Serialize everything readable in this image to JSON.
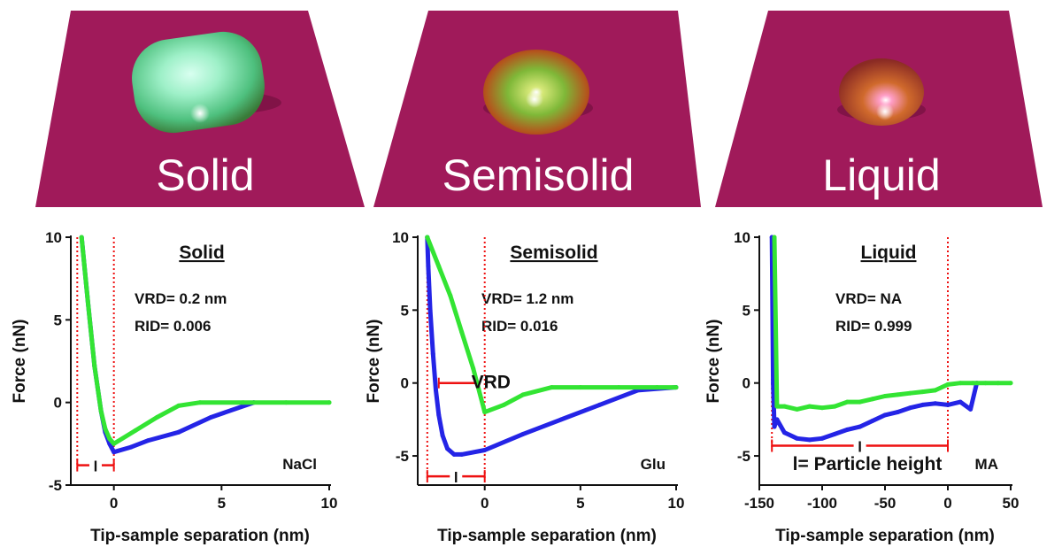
{
  "colors": {
    "background": "#ffffff",
    "substrate": "#a01a5a",
    "series_blue": "#2424e6",
    "series_green": "#33e433",
    "annotation_red": "#ee1111",
    "axis": "#111111"
  },
  "panels": [
    {
      "label": "Solid"
    },
    {
      "label": "Semisolid"
    },
    {
      "label": "Liquid"
    }
  ],
  "chart_data": [
    {
      "type": "line",
      "title": "Solid",
      "sample": "NaCl",
      "vrd_text": "VRD= 0.2 nm",
      "rid_text": "RID= 0.006",
      "xlabel": "Tip-sample separation (nm)",
      "ylabel": "Force (nN)",
      "xlim": [
        -2,
        10
      ],
      "ylim": [
        -5,
        10
      ],
      "xticks": [
        {
          "v": 0,
          "t": "0"
        },
        {
          "v": 5,
          "t": "5"
        },
        {
          "v": 10,
          "t": "10"
        }
      ],
      "yticks": [
        {
          "v": -5,
          "t": "-5"
        },
        {
          "v": 0,
          "t": "0"
        },
        {
          "v": 5,
          "t": "5"
        },
        {
          "v": 10,
          "t": "10"
        }
      ],
      "series": [
        {
          "name": "approach",
          "color": "blue",
          "x": [
            -1.5,
            -1.2,
            -0.9,
            -0.6,
            -0.4,
            -0.2,
            0.0,
            0.8,
            1.6,
            3.0,
            4.5,
            6.5
          ],
          "y": [
            10.0,
            6.0,
            2.2,
            -0.5,
            -1.8,
            -2.5,
            -3.0,
            -2.7,
            -2.3,
            -1.8,
            -0.9,
            0.0
          ]
        },
        {
          "name": "retract",
          "color": "green",
          "x": [
            -1.5,
            -1.2,
            -0.9,
            -0.6,
            -0.4,
            -0.2,
            0.0,
            1.0,
            2.0,
            3.0,
            4.0,
            6.0,
            8.0,
            10.0
          ],
          "y": [
            10.0,
            6.0,
            2.2,
            -0.5,
            -1.6,
            -2.2,
            -2.5,
            -1.7,
            -0.9,
            -0.2,
            0.0,
            0.0,
            0.0,
            0.0
          ]
        }
      ],
      "vrd_label": "",
      "l_label": "l",
      "bracket_x": [
        -1.7,
        0.0
      ],
      "bracket_y": -3.8,
      "height_text": "",
      "dotted_x": [
        -1.7,
        0.0
      ],
      "dotted_y_bottom": -4.0
    },
    {
      "type": "line",
      "title": "Semisolid",
      "sample": "Glu",
      "vrd_text": "VRD= 1.2 nm",
      "rid_text": "RID= 0.016",
      "xlabel": "Tip-sample separation (nm)",
      "ylabel": "Force (nN)",
      "xlim": [
        -3.5,
        10
      ],
      "ylim": [
        -7,
        10
      ],
      "xticks": [
        {
          "v": 0,
          "t": "0"
        },
        {
          "v": 5,
          "t": "5"
        },
        {
          "v": 10,
          "t": "10"
        }
      ],
      "yticks": [
        {
          "v": -5,
          "t": "-5"
        },
        {
          "v": 0,
          "t": "0"
        },
        {
          "v": 5,
          "t": "5"
        },
        {
          "v": 10,
          "t": "10"
        }
      ],
      "series": [
        {
          "name": "approach",
          "color": "blue",
          "x": [
            -3.0,
            -2.95,
            -2.85,
            -2.7,
            -2.55,
            -2.4,
            -2.2,
            -1.95,
            -1.6,
            -1.2,
            0.0,
            2.0,
            4.0,
            6.0,
            8.0,
            10.0
          ],
          "y": [
            10.0,
            8.0,
            5.0,
            2.0,
            -0.5,
            -2.2,
            -3.6,
            -4.5,
            -4.9,
            -4.9,
            -4.6,
            -3.5,
            -2.5,
            -1.5,
            -0.5,
            -0.3
          ]
        },
        {
          "name": "retract",
          "color": "green",
          "x": [
            -3.0,
            -2.4,
            -1.8,
            -1.2,
            -0.6,
            0.0,
            1.0,
            2.0,
            3.5,
            5.0,
            7.0,
            9.0,
            10.0
          ],
          "y": [
            10.0,
            8.0,
            6.0,
            3.5,
            1.0,
            -2.0,
            -1.5,
            -0.8,
            -0.3,
            -0.3,
            -0.3,
            -0.3,
            -0.3
          ]
        }
      ],
      "vrd_label": "VRD",
      "l_label": "l",
      "bracket_x": [
        -3.0,
        0.0
      ],
      "bracket_y": -6.4,
      "height_text": "",
      "dotted_x": [
        -3.0,
        0.0
      ],
      "dotted_y_bottom": -6.6
    },
    {
      "type": "line",
      "title": "Liquid",
      "sample": "MA",
      "vrd_text": "VRD= NA",
      "rid_text": "RID= 0.999",
      "xlabel": "Tip-sample separation (nm)",
      "ylabel": "Force (nN)",
      "xlim": [
        -150,
        50
      ],
      "ylim": [
        -7,
        10
      ],
      "xticks": [
        {
          "v": -150,
          "t": "-150"
        },
        {
          "v": -100,
          "t": "-100"
        },
        {
          "v": -50,
          "t": "-50"
        },
        {
          "v": 0,
          "t": "0"
        },
        {
          "v": 50,
          "t": "50"
        }
      ],
      "yticks": [
        {
          "v": -5,
          "t": "-5"
        },
        {
          "v": 0,
          "t": "0"
        },
        {
          "v": 5,
          "t": "5"
        },
        {
          "v": 10,
          "t": "10"
        }
      ],
      "series": [
        {
          "name": "approach",
          "color": "blue",
          "x": [
            -140,
            -139,
            -138,
            -136,
            -130,
            -120,
            -110,
            -100,
            -90,
            -80,
            -70,
            -60,
            -50,
            -40,
            -30,
            -20,
            -10,
            0,
            10,
            18,
            23
          ],
          "y": [
            10.0,
            0.0,
            -3.0,
            -2.5,
            -3.4,
            -3.8,
            -3.9,
            -3.8,
            -3.5,
            -3.2,
            -3.0,
            -2.6,
            -2.2,
            -2.0,
            -1.7,
            -1.5,
            -1.4,
            -1.5,
            -1.3,
            -1.8,
            0.0
          ]
        },
        {
          "name": "retract",
          "color": "green",
          "x": [
            -138,
            -136,
            -130,
            -120,
            -110,
            -100,
            -90,
            -80,
            -70,
            -60,
            -50,
            -40,
            -30,
            -20,
            -10,
            0,
            10,
            20,
            30,
            40,
            50
          ],
          "y": [
            10.0,
            -1.6,
            -1.6,
            -1.8,
            -1.6,
            -1.7,
            -1.6,
            -1.3,
            -1.3,
            -1.1,
            -0.9,
            -0.8,
            -0.7,
            -0.6,
            -0.5,
            -0.1,
            0.0,
            0.0,
            0.0,
            0.0,
            0.0
          ]
        }
      ],
      "vrd_label": "",
      "l_label": "l",
      "bracket_x": [
        -140,
        0
      ],
      "bracket_y": -4.3,
      "height_text": "l= Particle height",
      "dotted_x": [
        -140,
        0
      ],
      "dotted_y_bottom": -4.5
    }
  ]
}
